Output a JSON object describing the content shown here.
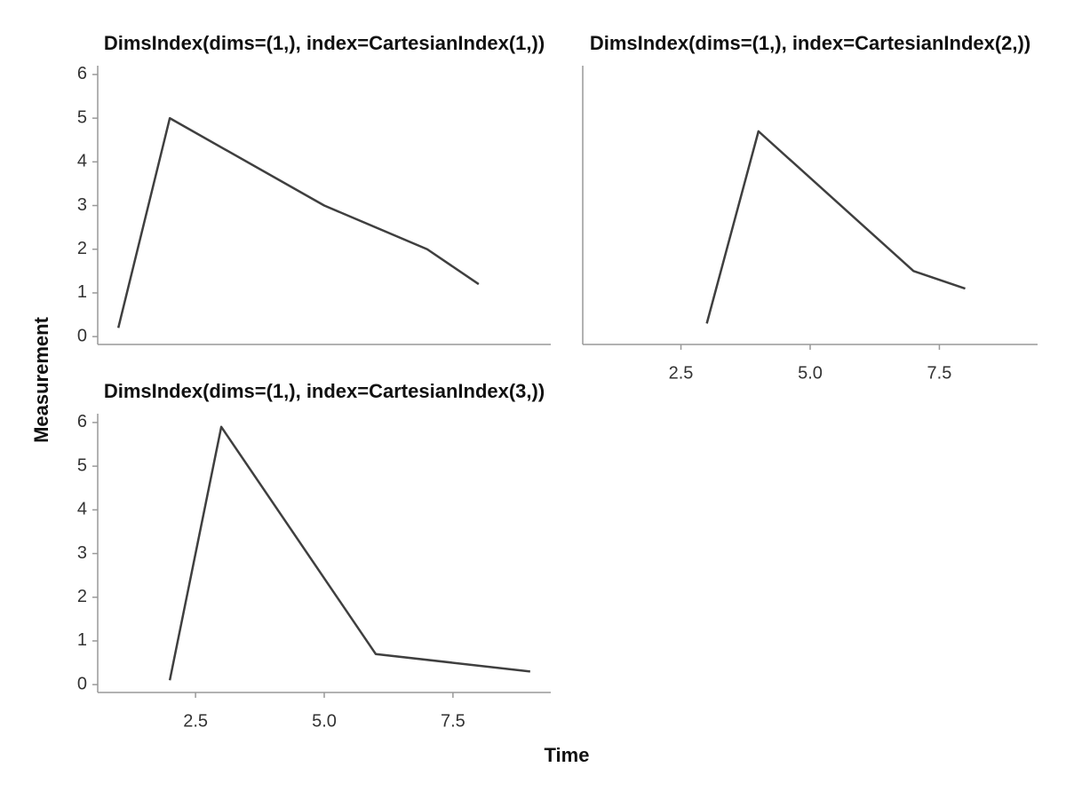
{
  "chart_data": {
    "type": "line",
    "xlabel": "Time",
    "ylabel": "Measurement",
    "color": "#3f3f3f",
    "xlim": [
      0.6,
      9.4
    ],
    "xticks": [
      2.5,
      {
        "value": 5,
        "label": "5.0"
      },
      7.5
    ],
    "ylim": [
      -0.18,
      6.12
    ],
    "yticks": [
      0,
      1,
      2,
      3,
      4,
      5,
      6
    ],
    "panels": [
      {
        "title": "DimsIndex(dims=(1,), index=CartesianIndex(1,))",
        "x": [
          1,
          2,
          5,
          7,
          8
        ],
        "values": [
          0.2,
          5.0,
          3.0,
          2.0,
          1.2
        ]
      },
      {
        "title": "DimsIndex(dims=(1,), index=CartesianIndex(2,))",
        "x": [
          3,
          4,
          7,
          8
        ],
        "values": [
          0.3,
          4.7,
          1.5,
          1.1
        ]
      },
      {
        "title": "DimsIndex(dims=(1,), index=CartesianIndex(3,))",
        "x": [
          2,
          3,
          6,
          9
        ],
        "values": [
          0.1,
          5.9,
          0.7,
          0.3
        ]
      }
    ]
  }
}
